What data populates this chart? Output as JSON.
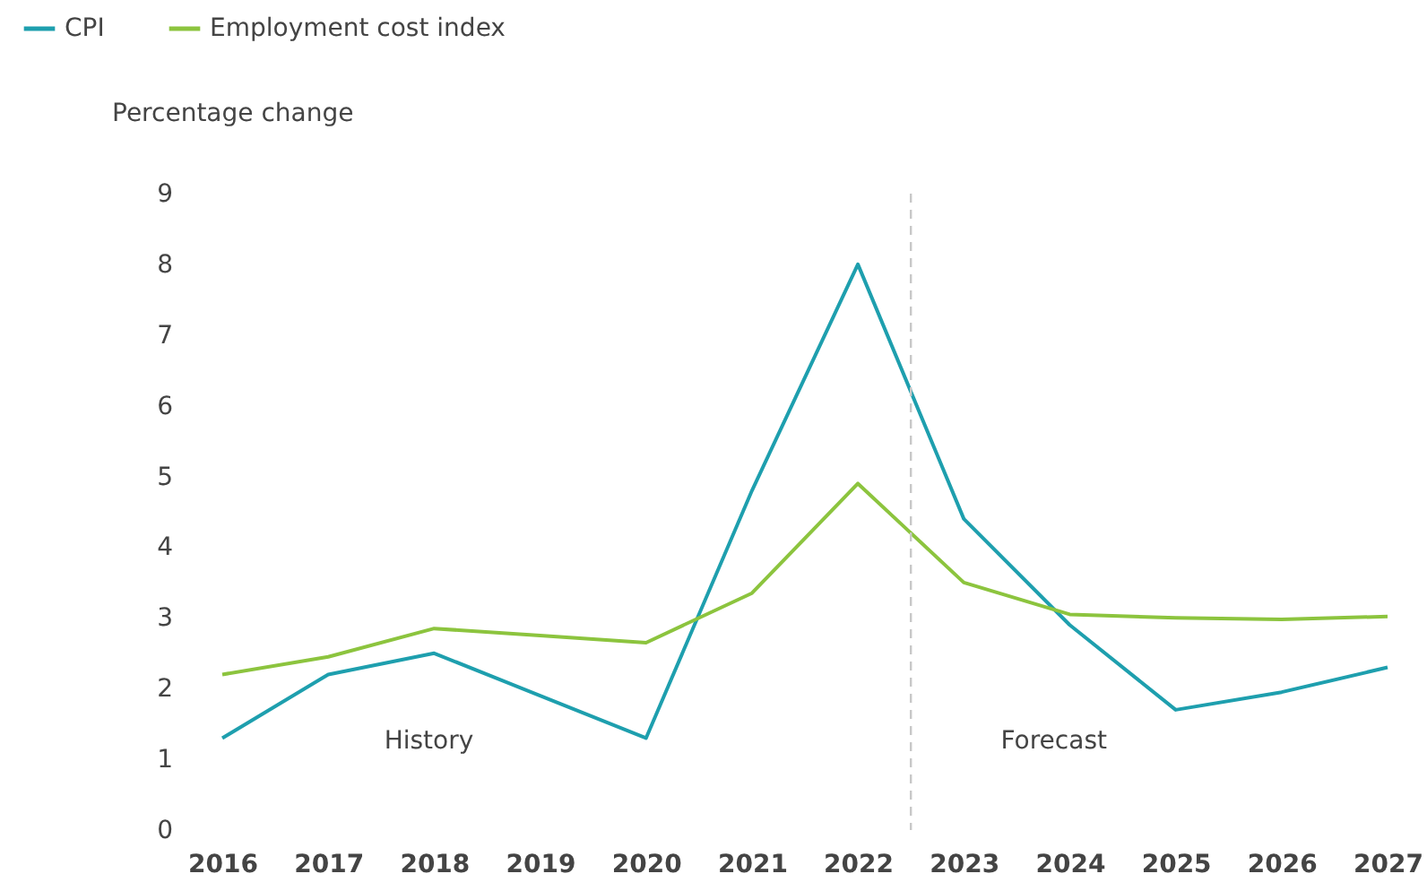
{
  "chart_data": {
    "type": "line",
    "ylabel": "Percentage change",
    "x": [
      2016,
      2017,
      2018,
      2019,
      2020,
      2021,
      2022,
      2023,
      2024,
      2025,
      2026,
      2027
    ],
    "series": [
      {
        "name": "CPI",
        "color": "#1e9fae",
        "values": [
          1.3,
          2.2,
          2.5,
          1.9,
          1.3,
          4.8,
          8.0,
          4.4,
          2.9,
          1.7,
          1.95,
          2.3
        ]
      },
      {
        "name": "Employment cost index",
        "color": "#8cc43e",
        "values": [
          2.2,
          2.45,
          2.85,
          2.75,
          2.65,
          3.35,
          4.9,
          3.5,
          3.05,
          3.0,
          2.98,
          3.02
        ]
      }
    ],
    "xlim": [
      2016,
      2027
    ],
    "xticks": [
      2016,
      2017,
      2018,
      2019,
      2020,
      2021,
      2022,
      2023,
      2024,
      2025,
      2026,
      2027
    ],
    "ylim": [
      0,
      9
    ],
    "yticks": [
      0,
      1,
      2,
      3,
      4,
      5,
      6,
      7,
      8,
      9
    ],
    "ref_lines": [
      {
        "axis": "x",
        "value": 2022.5,
        "color": "#c8c8c8",
        "line_style": "dashed"
      }
    ],
    "annotations": [
      "History",
      "Forecast"
    ],
    "grid": false,
    "legend": "top left",
    "marker": "none",
    "line_style": "solid"
  }
}
